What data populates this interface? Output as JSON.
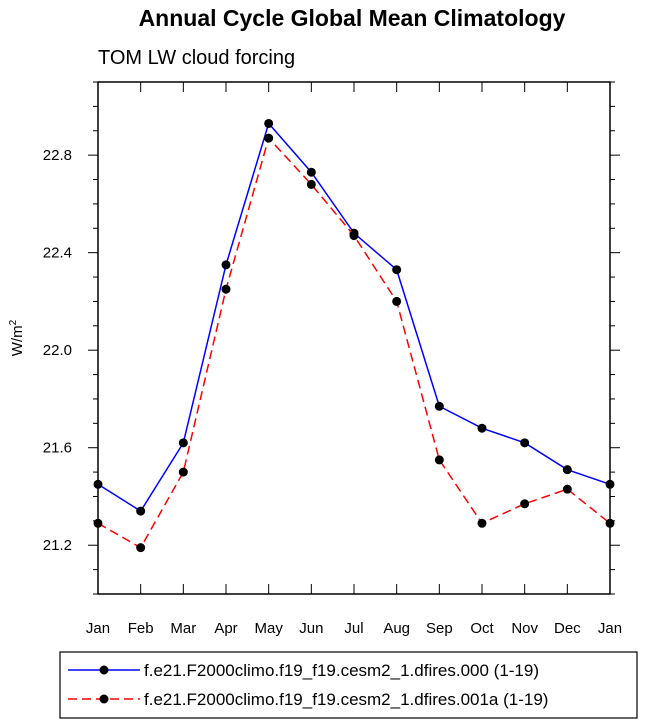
{
  "chart_data": {
    "type": "line",
    "title": "Annual Cycle Global Mean Climatology",
    "subtitle": "TOM LW cloud forcing",
    "xlabel": "",
    "ylabel": "W/m",
    "ylabel_superscript": "2",
    "categories": [
      "Jan",
      "Feb",
      "Mar",
      "Apr",
      "May",
      "Jun",
      "Jul",
      "Aug",
      "Sep",
      "Oct",
      "Nov",
      "Dec",
      "Jan"
    ],
    "ylim": [
      21.0,
      23.1
    ],
    "yticks": [
      21.2,
      21.6,
      22.0,
      22.4,
      22.8
    ],
    "ytick_labels": [
      "21.2",
      "21.6",
      "22.0",
      "22.4",
      "22.8"
    ],
    "series": [
      {
        "name": "f.e21.F2000climo.f19_f19.cesm2_1.dfires.000 (1-19)",
        "color": "#0000ff",
        "style": "solid",
        "values": [
          21.45,
          21.34,
          21.62,
          22.35,
          22.93,
          22.73,
          22.48,
          22.33,
          21.77,
          21.68,
          21.62,
          21.51,
          21.45
        ]
      },
      {
        "name": "f.e21.F2000climo.f19_f19.cesm2_1.dfires.001a (1-19)",
        "color": "#ff0000",
        "style": "dashed",
        "values": [
          21.29,
          21.19,
          21.5,
          22.25,
          22.87,
          22.68,
          22.47,
          22.2,
          21.55,
          21.29,
          21.37,
          21.43,
          21.29
        ]
      }
    ]
  }
}
